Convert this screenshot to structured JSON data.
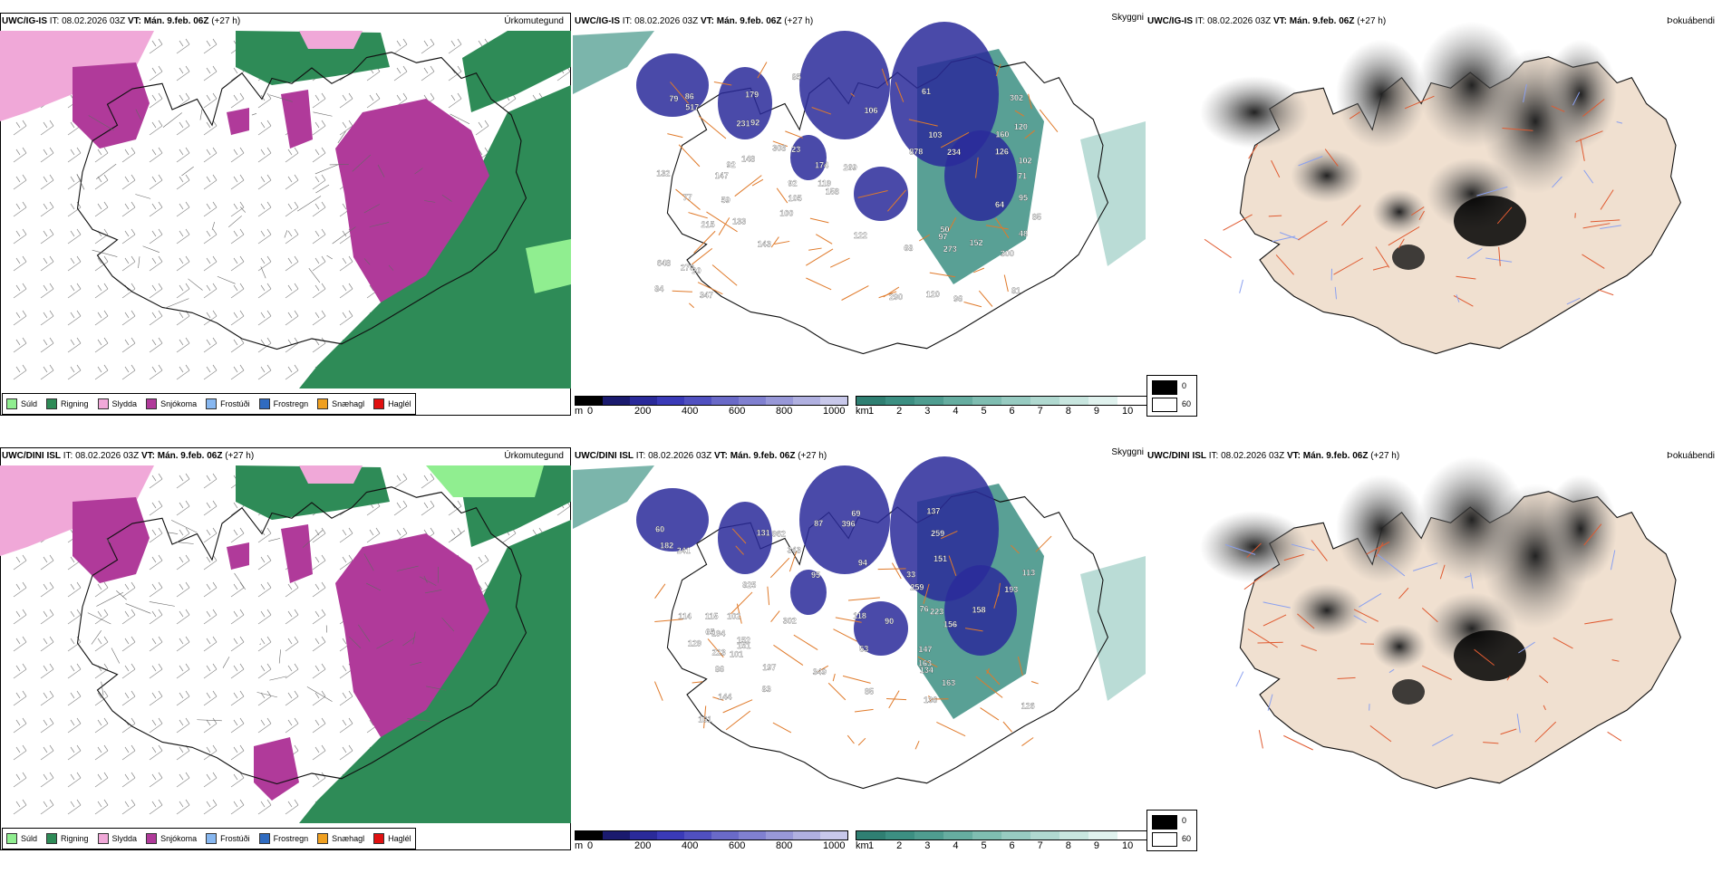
{
  "rows": [
    {
      "model": "UWC/IG-IS",
      "it_label": "IT:",
      "it_value": "08.02.2026 03Z",
      "vt_label": "VT:",
      "vt_value": "Mán. 9.feb. 06Z",
      "lead": "(+27 h)"
    },
    {
      "model": "UWC/DINI ISL",
      "it_label": "IT:",
      "it_value": "08.02.2026 03Z",
      "vt_label": "VT:",
      "vt_value": "Mán. 9.feb. 06Z",
      "lead": "(+27 h)"
    }
  ],
  "panels": {
    "precip_type": "Úrkomutegund",
    "cloud_base": "Skyggni",
    "fog_index": "Þokuábendi"
  },
  "precip_legend": [
    {
      "label": "Súld",
      "color": "#90EE90"
    },
    {
      "label": "Rigning",
      "color": "#2E8B57"
    },
    {
      "label": "Slydda",
      "color": "#F0A8D8"
    },
    {
      "label": "Snjókoma",
      "color": "#B03A9A"
    },
    {
      "label": "Frostúði",
      "color": "#87B7F0"
    },
    {
      "label": "Frostregn",
      "color": "#2F6BC0"
    },
    {
      "label": "Snæhagl",
      "color": "#F0A020"
    },
    {
      "label": "Haglél",
      "color": "#E01010"
    }
  ],
  "height_scale": {
    "unit": "m",
    "ticks": [
      "0",
      "200",
      "400",
      "600",
      "800",
      "1000"
    ],
    "colors": [
      "#000000",
      "#1a1a6e",
      "#2a2a9a",
      "#3a3ab8",
      "#5050c0",
      "#6a6ac8",
      "#8080d0",
      "#9898d8",
      "#b0b0e0",
      "#c8c8ea"
    ]
  },
  "visibility_scale": {
    "unit": "km",
    "ticks": [
      "1",
      "2",
      "3",
      "4",
      "5",
      "6",
      "7",
      "8",
      "9",
      "10"
    ],
    "colors": [
      "#2f7f72",
      "#3c8f82",
      "#4f9d90",
      "#66ad a0",
      "#7fbdb1",
      "#97cbc1",
      "#b0d9d0",
      "#c8e6df",
      "#e0f2ee",
      "#ffffff"
    ]
  },
  "fog_scale": {
    "max": "0",
    "min": "60"
  },
  "cloud_labels_top": [
    "143",
    "158",
    "119",
    "77",
    "234",
    "122",
    "273",
    "97",
    "103",
    "68",
    "120",
    "92",
    "20",
    "132",
    "50",
    "174",
    "71",
    "92",
    "48",
    "126",
    "92",
    "79",
    "147",
    "64",
    "84",
    "86",
    "61",
    "59",
    "85",
    "120",
    "160",
    "148",
    "102",
    "269",
    "215",
    "270",
    "308",
    "648",
    "290",
    "878",
    "231",
    "302",
    "300",
    "517",
    "105",
    "85",
    "81",
    "133",
    "23",
    "347",
    "152",
    "179",
    "95",
    "106",
    "100",
    "96"
  ],
  "cloud_labels_bottom": [
    "223",
    "194",
    "158",
    "137",
    "147",
    "95",
    "76",
    "259",
    "94",
    "60",
    "87",
    "53",
    "113",
    "131",
    "163",
    "193",
    "85",
    "69",
    "101",
    "90",
    "86",
    "115",
    "156",
    "182",
    "241",
    "343",
    "349",
    "962",
    "136",
    "134",
    "152",
    "144",
    "102",
    "161",
    "114",
    "825",
    "302",
    "259",
    "223",
    "151",
    "396",
    "197",
    "129",
    "163",
    "126",
    "83",
    "33",
    "118",
    "65",
    "151"
  ]
}
